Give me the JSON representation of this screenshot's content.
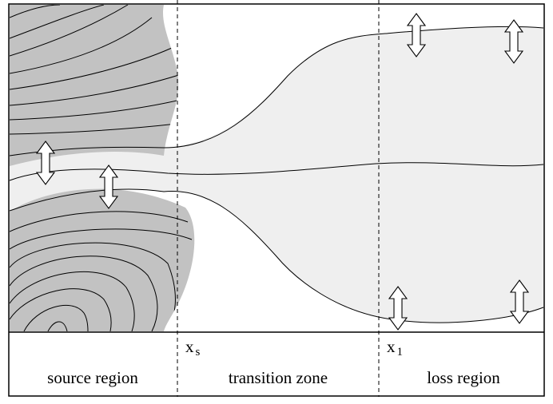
{
  "diagram": {
    "markers": {
      "xs": {
        "base": "x",
        "sub": "s"
      },
      "x1": {
        "base": "x",
        "sub": "1"
      }
    },
    "regions": {
      "source": "source region",
      "transition": "transition zone",
      "loss": "loss region"
    },
    "colors": {
      "dark_region": "#c2c2c2",
      "light_region": "#efefef",
      "line": "#000000",
      "background": "#ffffff"
    },
    "icons": [
      "double-arrow-icon"
    ]
  }
}
